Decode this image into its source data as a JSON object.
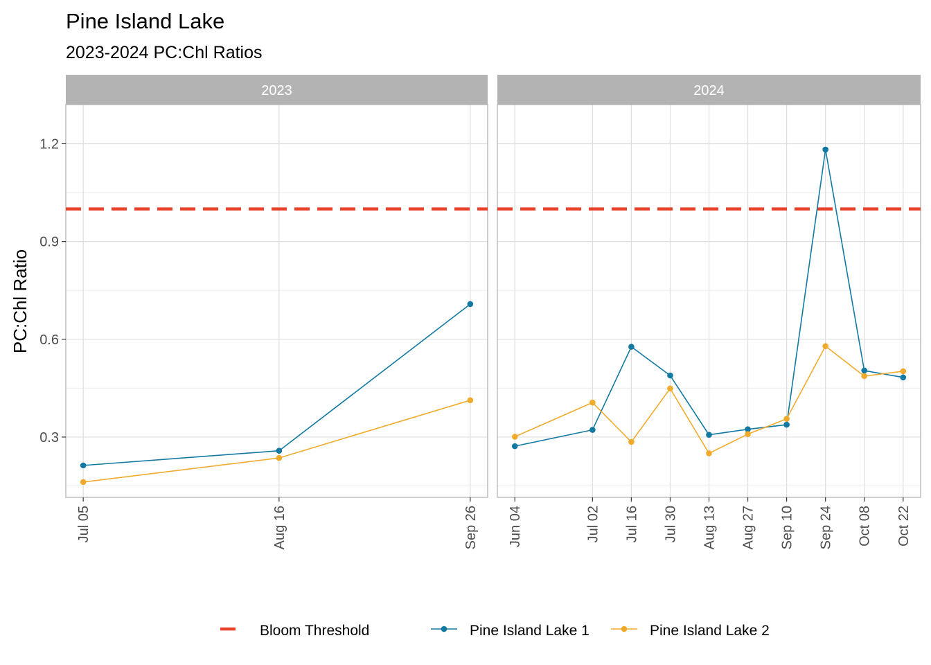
{
  "title": "Pine Island Lake",
  "subtitle": "2023-2024 PC:Chl Ratios",
  "chart_data": {
    "type": "line",
    "ylabel": "PC:Chl Ratio",
    "xlabel": "",
    "ylim": [
      0.115,
      1.32
    ],
    "y_ticks": [
      0.3,
      0.6,
      0.9,
      1.2
    ],
    "y_tick_labels": [
      "0.3",
      "0.6",
      "0.9",
      "1.2"
    ],
    "threshold": {
      "name": "Bloom Threshold",
      "value": 1.0,
      "color": "#e8432a",
      "style": "dashed"
    },
    "grid": true,
    "legend_position": "bottom",
    "panels": [
      {
        "label": "2023",
        "x": [
          "2023-07-05",
          "2023-08-16",
          "2023-09-26"
        ],
        "x_tick_labels": [
          "Jul 05",
          "Aug 16",
          "Sep 26"
        ],
        "series": [
          {
            "name": "Pine Island Lake 1",
            "color": "#1279a2",
            "values": [
              0.213,
              0.258,
              0.708
            ]
          },
          {
            "name": "Pine Island Lake 2",
            "color": "#f0ab2d",
            "values": [
              0.162,
              0.236,
              0.413
            ]
          }
        ]
      },
      {
        "label": "2024",
        "x": [
          "2024-06-04",
          "2024-07-02",
          "2024-07-16",
          "2024-07-30",
          "2024-08-13",
          "2024-08-27",
          "2024-09-10",
          "2024-09-24",
          "2024-10-08",
          "2024-10-22"
        ],
        "x_tick_labels": [
          "Jun 04",
          "Jul 02",
          "Jul 16",
          "Jul 30",
          "Aug 13",
          "Aug 27",
          "Sep 10",
          "Sep 24",
          "Oct 08",
          "Oct 22"
        ],
        "series": [
          {
            "name": "Pine Island Lake 1",
            "color": "#1279a2",
            "values": [
              0.272,
              0.322,
              0.577,
              0.489,
              0.307,
              0.324,
              0.338,
              1.182,
              0.504,
              0.483
            ]
          },
          {
            "name": "Pine Island Lake 2",
            "color": "#f0ab2d",
            "values": [
              0.301,
              0.406,
              0.285,
              0.449,
              0.25,
              0.309,
              0.356,
              0.579,
              0.487,
              0.502
            ]
          }
        ]
      }
    ]
  },
  "legend": {
    "items": [
      {
        "label": "Bloom Threshold",
        "color": "#e8432a",
        "kind": "dash"
      },
      {
        "label": "Pine Island Lake 1",
        "color": "#1279a2",
        "kind": "line-point"
      },
      {
        "label": "Pine Island Lake 2",
        "color": "#f0ab2d",
        "kind": "line-point"
      }
    ]
  }
}
